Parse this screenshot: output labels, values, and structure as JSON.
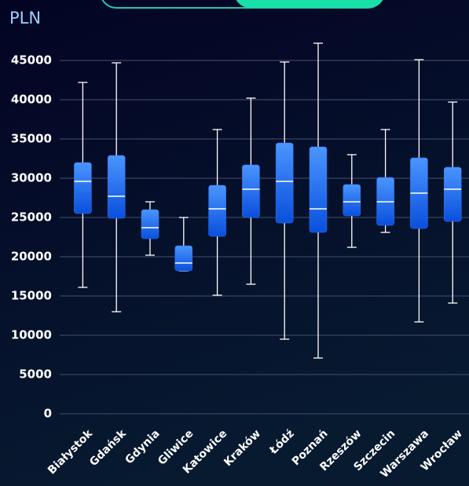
{
  "chart_data": {
    "type": "box",
    "y_unit": "PLN",
    "categories": [
      "Białystok",
      "Gdańsk",
      "Gdynia",
      "Gliwice",
      "Katowice",
      "Kraków",
      "Łódź",
      "Poznań",
      "Rzeszów",
      "Szczecin",
      "Warszawa",
      "Wrocław"
    ],
    "min": [
      16100,
      13000,
      20200,
      18200,
      15100,
      16500,
      9500,
      7100,
      21200,
      23100,
      11700,
      14100
    ],
    "q1": [
      25500,
      24900,
      22300,
      18200,
      22600,
      25000,
      24300,
      23100,
      25200,
      24000,
      23600,
      24500
    ],
    "median": [
      29600,
      27700,
      23700,
      19200,
      26100,
      28600,
      29600,
      26100,
      27000,
      27000,
      28100,
      28600
    ],
    "q3": [
      32000,
      32900,
      26000,
      21400,
      29100,
      31700,
      34500,
      34000,
      29200,
      30100,
      32600,
      31400
    ],
    "max": [
      42200,
      44700,
      27000,
      25000,
      36200,
      40200,
      44800,
      47200,
      33000,
      36200,
      45100,
      39700
    ],
    "color": "#2f7bff",
    "ylim": [
      0,
      47000
    ],
    "yticks": [
      0,
      5000,
      10000,
      15000,
      20000,
      25000,
      30000,
      35000,
      40000,
      45000
    ],
    "grid": true
  }
}
